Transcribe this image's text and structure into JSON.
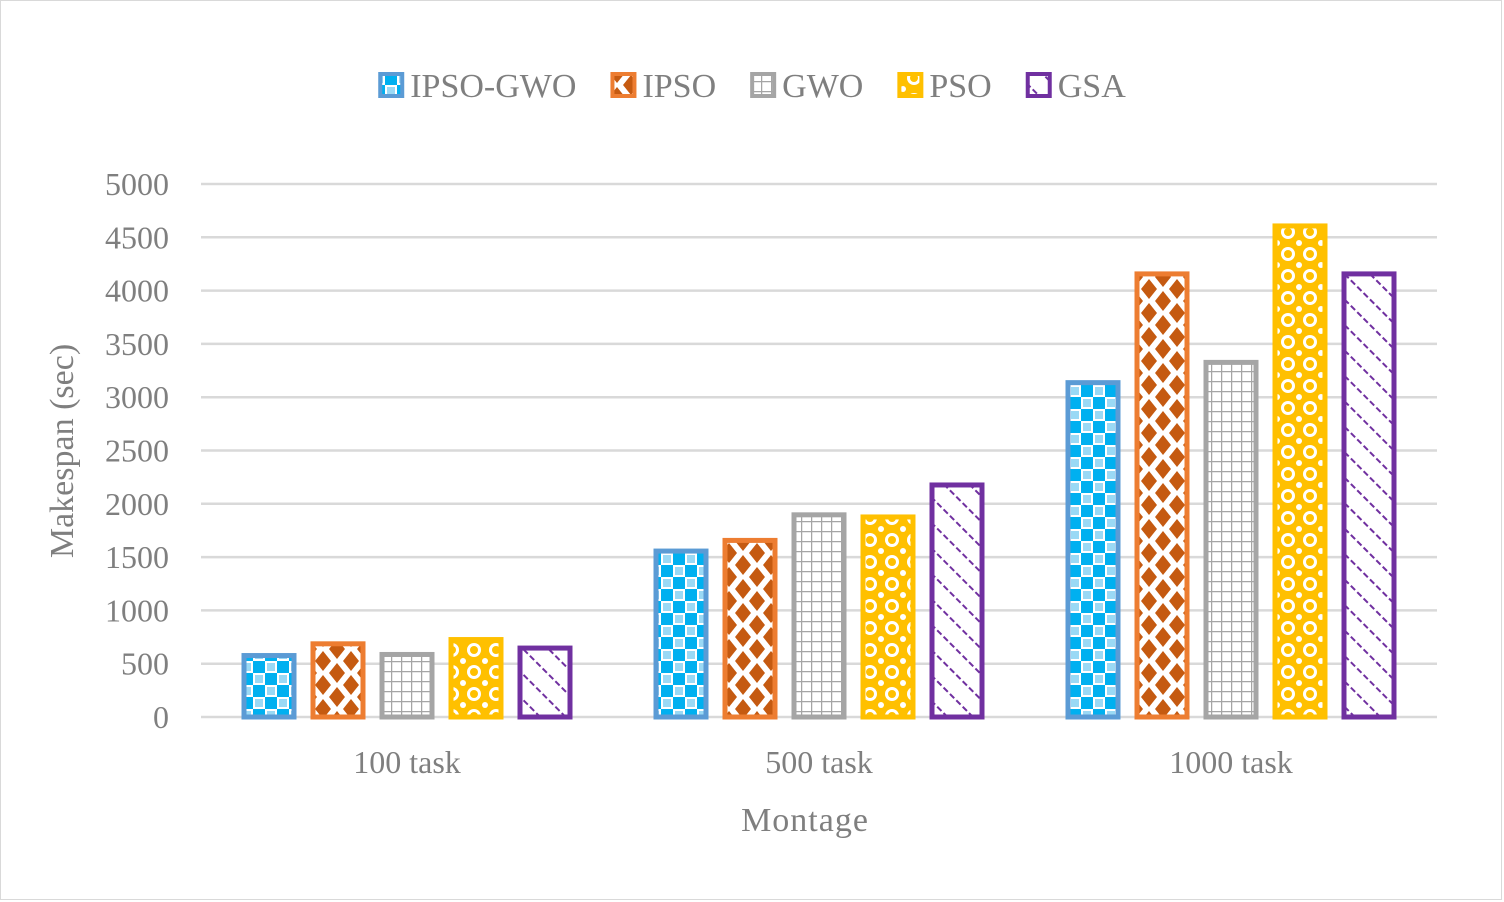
{
  "chart_data": {
    "type": "bar",
    "title": "",
    "xlabel": "Montage",
    "ylabel": "Makespan (sec)",
    "categories": [
      "100 task",
      "500 task",
      "1000 task"
    ],
    "ylim": [
      0,
      5000
    ],
    "yticks": [
      0,
      500,
      1000,
      1500,
      2000,
      2500,
      3000,
      3500,
      4000,
      4500,
      5000
    ],
    "grid": true,
    "legend_position": "top",
    "series": [
      {
        "name": "IPSO-GWO",
        "color": "#5B9BD5",
        "pattern": "checker",
        "values": [
          600,
          1580,
          3160
        ]
      },
      {
        "name": "IPSO",
        "color": "#ED7D31",
        "pattern": "diamond",
        "values": [
          710,
          1680,
          4180
        ]
      },
      {
        "name": "GWO",
        "color": "#A5A5A5",
        "pattern": "grid",
        "values": [
          610,
          1920,
          3350
        ]
      },
      {
        "name": "PSO",
        "color": "#FFC000",
        "pattern": "circles",
        "values": [
          750,
          1900,
          4630
        ]
      },
      {
        "name": "GSA",
        "color": "#7030A0",
        "pattern": "diagonal",
        "values": [
          670,
          2200,
          4180
        ]
      }
    ]
  }
}
